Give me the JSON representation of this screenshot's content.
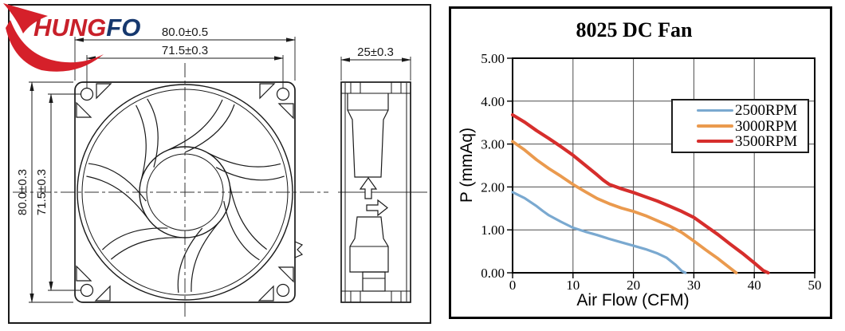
{
  "logo": {
    "brand_part1": "HUNG",
    "brand_part2": "FO",
    "color_red": "#C8202A",
    "color_navy": "#16386E",
    "swoosh_color": "#D5202A"
  },
  "drawing": {
    "dim_width_outer": "80.0±0.5",
    "dim_hole_pitch_h": "71.5±0.3",
    "dim_height_outer": "80.0±0.3",
    "dim_hole_pitch_v": "71.5±0.3",
    "dim_depth": "25±0.3"
  },
  "chart_data": {
    "type": "line",
    "title": "8025 DC Fan",
    "xlabel": "Air Flow (CFM)",
    "ylabel": "P  (mmAq)",
    "xlim": [
      0,
      50
    ],
    "ylim": [
      0,
      5
    ],
    "xticks": [
      0,
      10,
      20,
      30,
      40,
      50
    ],
    "xtick_labels": [
      "0",
      "10",
      "20",
      "30",
      "40",
      "50"
    ],
    "yticks": [
      0,
      1,
      2,
      3,
      4,
      5
    ],
    "ytick_labels": [
      "0.00",
      "1.00",
      "2.00",
      "3.00",
      "4.00",
      "5.00"
    ],
    "grid": true,
    "grid_color": "#4d4d4d",
    "legend_position": "upper right",
    "series": [
      {
        "name": "2500RPM",
        "color": "#7AA9D0",
        "line_width": 3.2,
        "points": [
          [
            0,
            1.88
          ],
          [
            2,
            1.74
          ],
          [
            4,
            1.55
          ],
          [
            5,
            1.44
          ],
          [
            6,
            1.34
          ],
          [
            8,
            1.19
          ],
          [
            10,
            1.05
          ],
          [
            12,
            0.96
          ],
          [
            14,
            0.88
          ],
          [
            16,
            0.79
          ],
          [
            18,
            0.71
          ],
          [
            20,
            0.63
          ],
          [
            22,
            0.55
          ],
          [
            24,
            0.45
          ],
          [
            25.5,
            0.35
          ],
          [
            27,
            0.18
          ],
          [
            28,
            0.04
          ],
          [
            28.6,
            0
          ]
        ]
      },
      {
        "name": "3000RPM",
        "color": "#EA9A4E",
        "line_width": 3.8,
        "points": [
          [
            0,
            3.06
          ],
          [
            2,
            2.86
          ],
          [
            4,
            2.63
          ],
          [
            6,
            2.43
          ],
          [
            8,
            2.25
          ],
          [
            10,
            2.06
          ],
          [
            12,
            1.89
          ],
          [
            14,
            1.73
          ],
          [
            16,
            1.61
          ],
          [
            18,
            1.51
          ],
          [
            20,
            1.43
          ],
          [
            22,
            1.33
          ],
          [
            24,
            1.21
          ],
          [
            26,
            1.09
          ],
          [
            28,
            0.94
          ],
          [
            30,
            0.74
          ],
          [
            32,
            0.53
          ],
          [
            34,
            0.33
          ],
          [
            36,
            0.11
          ],
          [
            37,
            0
          ]
        ]
      },
      {
        "name": "3500RPM",
        "color": "#D62E2C",
        "line_width": 4.2,
        "points": [
          [
            0,
            3.68
          ],
          [
            2,
            3.51
          ],
          [
            4,
            3.31
          ],
          [
            6,
            3.13
          ],
          [
            8,
            2.94
          ],
          [
            10,
            2.74
          ],
          [
            12,
            2.51
          ],
          [
            14,
            2.28
          ],
          [
            15,
            2.16
          ],
          [
            16,
            2.06
          ],
          [
            18,
            1.96
          ],
          [
            20,
            1.87
          ],
          [
            22,
            1.77
          ],
          [
            24,
            1.67
          ],
          [
            26,
            1.55
          ],
          [
            28,
            1.43
          ],
          [
            30,
            1.29
          ],
          [
            32,
            1.09
          ],
          [
            34,
            0.89
          ],
          [
            36,
            0.67
          ],
          [
            38,
            0.46
          ],
          [
            40,
            0.23
          ],
          [
            41.5,
            0.05
          ],
          [
            42.3,
            0
          ]
        ]
      }
    ]
  }
}
